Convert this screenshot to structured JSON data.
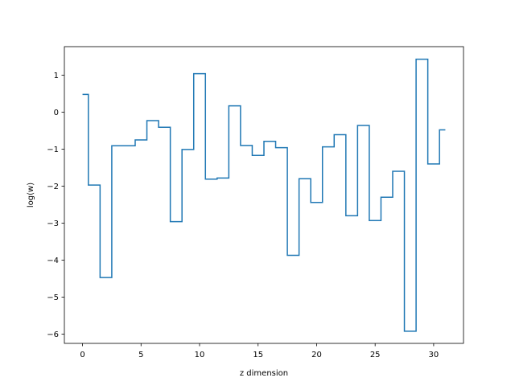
{
  "chart_data": {
    "type": "line",
    "drawstyle": "steps-mid",
    "xlabel": "z dimension",
    "ylabel": "log(w)",
    "xlim": [
      -1.55,
      32.55
    ],
    "ylim": [
      -6.25,
      1.77
    ],
    "xticks": [
      0,
      5,
      10,
      15,
      20,
      25,
      30
    ],
    "yticks": [
      -6,
      -5,
      -4,
      -3,
      -2,
      -1,
      0,
      1
    ],
    "xtick_labels": [
      "0",
      "5",
      "10",
      "15",
      "20",
      "25",
      "30"
    ],
    "ytick_labels": [
      "−6",
      "−5",
      "−4",
      "−3",
      "−2",
      "−1",
      "0",
      "1"
    ],
    "line_color": "#1f77b4",
    "grid": false,
    "series": [
      {
        "x": [
          0,
          1,
          2,
          3,
          4,
          5,
          6,
          7,
          8,
          9,
          10,
          11,
          12,
          13,
          14,
          15,
          16,
          17,
          18,
          19,
          20,
          21,
          22,
          23,
          24,
          25,
          26,
          27,
          28,
          29,
          30,
          31
        ],
        "values": [
          0.48,
          -1.97,
          -4.47,
          -0.91,
          -0.91,
          -0.75,
          -0.23,
          -0.41,
          -2.96,
          -1.01,
          1.04,
          -1.81,
          -1.78,
          0.17,
          -0.9,
          -1.17,
          -0.79,
          -0.96,
          -3.87,
          -1.8,
          -2.44,
          -0.94,
          -0.61,
          -2.8,
          -0.36,
          -2.93,
          -2.3,
          -1.6,
          -5.92,
          1.43,
          -1.4,
          -0.48
        ]
      }
    ]
  }
}
